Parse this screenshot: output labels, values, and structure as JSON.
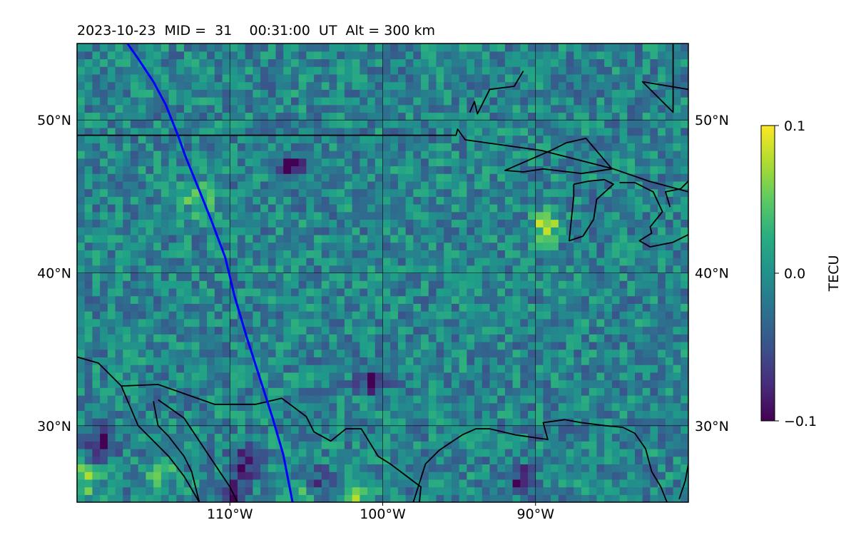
{
  "chart_data": {
    "type": "heatmap",
    "title": "2023-10-23  MID =  31    00:31:00  UT  Alt = 300 km",
    "xlabel": "",
    "ylabel": "",
    "x_range": [
      -120,
      -80
    ],
    "y_range": [
      25,
      55
    ],
    "x_ticks": [
      {
        "value": -110,
        "label": "110°W"
      },
      {
        "value": -100,
        "label": "100°W"
      },
      {
        "value": -90,
        "label": "90°W"
      }
    ],
    "y_ticks": [
      {
        "value": 50,
        "label": "50°N"
      },
      {
        "value": 40,
        "label": "40°N"
      },
      {
        "value": 30,
        "label": "30°N"
      }
    ],
    "grid": true,
    "colormap": "viridis",
    "colorbar": {
      "label": "TECU",
      "min": -0.1,
      "max": 0.1,
      "ticks": [
        {
          "value": 0.1,
          "label": "0.1"
        },
        {
          "value": 0.0,
          "label": "0.0"
        },
        {
          "value": -0.1,
          "label": "−0.1"
        }
      ]
    },
    "background_value": -0.01,
    "hotspots": [
      {
        "lon": -119.5,
        "lat": 26.5,
        "value": 0.07
      },
      {
        "lon": -114.5,
        "lat": 27.0,
        "value": 0.05
      },
      {
        "lon": -105.0,
        "lat": 25.8,
        "value": 0.07
      },
      {
        "lon": -102.0,
        "lat": 25.5,
        "value": 0.06
      },
      {
        "lon": -89.3,
        "lat": 43.0,
        "value": 0.08
      },
      {
        "lon": -112.0,
        "lat": 44.8,
        "value": 0.06
      },
      {
        "lon": -118.5,
        "lat": 28.8,
        "value": -0.09
      },
      {
        "lon": -109.0,
        "lat": 27.5,
        "value": -0.08
      },
      {
        "lon": -110.0,
        "lat": 25.6,
        "value": -0.09
      },
      {
        "lon": -104.5,
        "lat": 26.2,
        "value": -0.08
      },
      {
        "lon": -106.0,
        "lat": 47.0,
        "value": -0.07
      },
      {
        "lon": -91.0,
        "lat": 26.5,
        "value": -0.07
      },
      {
        "lon": -100.7,
        "lat": 33.0,
        "value": -0.07
      }
    ],
    "satellite_track": {
      "color": "#0000ff",
      "points": [
        [
          -116.7,
          55.0
        ],
        [
          -116.0,
          54.0
        ],
        [
          -115.0,
          52.5
        ],
        [
          -114.2,
          51.0
        ],
        [
          -113.4,
          49.0
        ],
        [
          -112.9,
          47.6
        ],
        [
          -112.0,
          45.4
        ],
        [
          -111.2,
          43.4
        ],
        [
          -110.3,
          41.0
        ],
        [
          -109.7,
          38.5
        ],
        [
          -108.9,
          35.8
        ],
        [
          -108.1,
          33.3
        ],
        [
          -107.2,
          30.5
        ],
        [
          -106.5,
          28.1
        ],
        [
          -105.9,
          25.0
        ]
      ]
    },
    "outlines": [
      [
        [
          -120,
          49.0
        ],
        [
          -95.2,
          49.0
        ],
        [
          -95.1,
          49.4
        ],
        [
          -94.6,
          48.7
        ],
        [
          -89.6,
          48.0
        ],
        [
          -84.9,
          46.8
        ],
        [
          -82.6,
          46.0
        ],
        [
          -80,
          45.3
        ]
      ],
      [
        [
          -120,
          34.5
        ],
        [
          -118.6,
          34.1
        ],
        [
          -117.1,
          32.6
        ],
        [
          -114.7,
          32.7
        ],
        [
          -111.0,
          31.4
        ],
        [
          -108.3,
          31.4
        ],
        [
          -106.6,
          31.8
        ],
        [
          -105.0,
          30.6
        ],
        [
          -104.5,
          29.6
        ],
        [
          -103.4,
          29.0
        ],
        [
          -102.4,
          29.8
        ],
        [
          -101.4,
          29.8
        ],
        [
          -100.3,
          28.0
        ],
        [
          -99.5,
          27.5
        ],
        [
          -97.5,
          26.0
        ],
        [
          -97.6,
          25.0
        ]
      ],
      [
        [
          -117.1,
          32.6
        ],
        [
          -116.0,
          30.0
        ],
        [
          -114.0,
          28.0
        ],
        [
          -113.0,
          26.7
        ],
        [
          -112.0,
          25.0
        ]
      ],
      [
        [
          -114.7,
          31.7
        ],
        [
          -113.0,
          30.5
        ],
        [
          -112.0,
          29.0
        ],
        [
          -111.0,
          27.5
        ],
        [
          -110.0,
          26.0
        ],
        [
          -109.5,
          25.0
        ]
      ],
      [
        [
          -115.0,
          31.6
        ],
        [
          -114.7,
          30.0
        ],
        [
          -114.0,
          29.3
        ],
        [
          -113.0,
          28.0
        ],
        [
          -112.5,
          27.0
        ],
        [
          -112.0,
          25.0
        ]
      ],
      [
        [
          -98.0,
          25.0
        ],
        [
          -97.2,
          27.5
        ],
        [
          -96.3,
          28.4
        ],
        [
          -94.8,
          29.4
        ],
        [
          -93.9,
          29.8
        ],
        [
          -93.0,
          29.8
        ],
        [
          -91.3,
          29.4
        ],
        [
          -89.9,
          29.2
        ],
        [
          -89.2,
          29.1
        ],
        [
          -89.5,
          30.2
        ],
        [
          -88.1,
          30.4
        ],
        [
          -87.0,
          30.2
        ],
        [
          -85.4,
          30.0
        ],
        [
          -84.3,
          29.9
        ],
        [
          -83.5,
          29.5
        ],
        [
          -82.8,
          28.5
        ],
        [
          -82.4,
          27.0
        ],
        [
          -81.8,
          26.0
        ],
        [
          -81.4,
          25.0
        ]
      ],
      [
        [
          -80.0,
          27.5
        ],
        [
          -80.2,
          26.4
        ],
        [
          -80.6,
          25.2
        ]
      ],
      [
        [
          -88.0,
          48.5
        ],
        [
          -86.7,
          48.8
        ],
        [
          -85.0,
          46.8
        ],
        [
          -87.0,
          46.5
        ],
        [
          -89.5,
          46.8
        ],
        [
          -90.8,
          46.6
        ],
        [
          -92.0,
          46.7
        ],
        [
          -89.0,
          48.0
        ],
        [
          -88.0,
          48.5
        ]
      ],
      [
        [
          -87.5,
          45.8
        ],
        [
          -86.5,
          46.0
        ],
        [
          -85.5,
          46.1
        ],
        [
          -84.9,
          45.8
        ],
        [
          -86.0,
          44.8
        ],
        [
          -86.2,
          43.5
        ],
        [
          -86.9,
          42.4
        ],
        [
          -87.8,
          42.1
        ],
        [
          -87.5,
          45.0
        ],
        [
          -87.5,
          45.8
        ]
      ],
      [
        [
          -84.5,
          45.9
        ],
        [
          -83.5,
          45.9
        ],
        [
          -82.3,
          45.3
        ],
        [
          -81.7,
          44.0
        ],
        [
          -82.5,
          43.0
        ],
        [
          -82.4,
          42.6
        ],
        [
          -83.2,
          42.1
        ],
        [
          -82.5,
          41.7
        ],
        [
          -81.0,
          42.0
        ],
        [
          -80.0,
          42.5
        ]
      ],
      [
        [
          -81.2,
          44.3
        ],
        [
          -81.5,
          45.3
        ],
        [
          -80.5,
          45.5
        ],
        [
          -80.0,
          46.0
        ]
      ],
      [
        [
          -120,
          25.0
        ],
        [
          -120,
          25.0
        ]
      ]
    ],
    "east_coast": [
      [
        -81.0,
        55.0
      ],
      [
        -81.0,
        50.5
      ],
      [
        -83.0,
        52.5
      ],
      [
        -80,
        52.0
      ]
    ],
    "hudson_bay_west": [
      [
        -90.8,
        53.2
      ],
      [
        -91.4,
        52.2
      ],
      [
        -93.0,
        52.0
      ],
      [
        -93.8,
        50.4
      ],
      [
        -94.0,
        51.2
      ],
      [
        -94.3,
        50.5
      ]
    ]
  }
}
